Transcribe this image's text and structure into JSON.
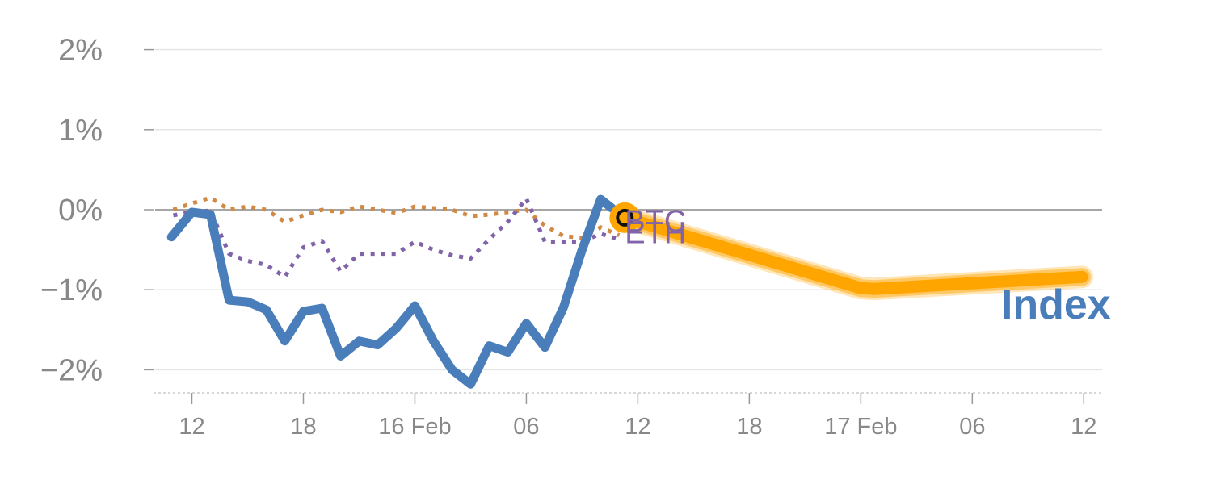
{
  "chart_data": {
    "type": "line",
    "title": "",
    "xlabel": "",
    "ylabel": "",
    "x_unit": "hours",
    "xlim": [
      -1,
      49.5
    ],
    "ylim": [
      -2.25,
      2.0
    ],
    "grid": true,
    "y_ticks": [
      {
        "value": 2,
        "label": "2%"
      },
      {
        "value": 1,
        "label": "1%"
      },
      {
        "value": 0,
        "label": "0%"
      },
      {
        "value": -1,
        "label": "−1%"
      },
      {
        "value": -2,
        "label": "−2%"
      }
    ],
    "x_ticks": [
      {
        "value": 1,
        "label": "12"
      },
      {
        "value": 7,
        "label": "18"
      },
      {
        "value": 13,
        "label": "16 Feb"
      },
      {
        "value": 19,
        "label": "06"
      },
      {
        "value": 25,
        "label": "12"
      },
      {
        "value": 31,
        "label": "18"
      },
      {
        "value": 37,
        "label": "17 Feb"
      },
      {
        "value": 43,
        "label": "06"
      },
      {
        "value": 49,
        "label": "12"
      }
    ],
    "series": [
      {
        "name": "Index",
        "color": "#4a7ebb",
        "style": "solid",
        "x": [
          -0.1,
          1,
          2,
          3,
          4,
          5,
          6,
          7,
          8,
          9,
          10,
          11,
          12,
          13,
          14,
          15,
          16,
          17,
          18,
          19,
          20,
          21,
          22,
          23,
          23.6
        ],
        "y": [
          -0.34,
          -0.03,
          -0.06,
          -1.13,
          -1.15,
          -1.25,
          -1.64,
          -1.27,
          -1.23,
          -1.83,
          -1.64,
          -1.69,
          -1.48,
          -1.2,
          -1.64,
          -2.0,
          -2.18,
          -1.7,
          -1.78,
          -1.42,
          -1.72,
          -1.22,
          -0.5,
          0.13,
          0.02
        ]
      },
      {
        "name": "BTC",
        "color": "#d08a45",
        "style": "dotted",
        "x": [
          0,
          1,
          2,
          3,
          4,
          5,
          6,
          7,
          8,
          9,
          10,
          11,
          12,
          13,
          14,
          15,
          16,
          17,
          18,
          19,
          20,
          21,
          22,
          23,
          24
        ],
        "y": [
          0.0,
          0.08,
          0.15,
          0.0,
          0.04,
          0.0,
          -0.15,
          -0.07,
          0.0,
          -0.03,
          0.04,
          0.0,
          -0.04,
          0.04,
          0.02,
          0.0,
          -0.08,
          -0.06,
          -0.03,
          0.0,
          -0.2,
          -0.33,
          -0.35,
          -0.22,
          -0.32
        ]
      },
      {
        "name": "ETH",
        "color": "#8063a8",
        "style": "dotted",
        "x": [
          0,
          1,
          2,
          3,
          4,
          5,
          6,
          7,
          8,
          9,
          10,
          11,
          12,
          13,
          14,
          15,
          16,
          17,
          18,
          19,
          20,
          21,
          22,
          23,
          24
        ],
        "y": [
          -0.07,
          -0.03,
          -0.01,
          -0.55,
          -0.64,
          -0.69,
          -0.84,
          -0.47,
          -0.39,
          -0.77,
          -0.55,
          -0.55,
          -0.55,
          -0.4,
          -0.5,
          -0.57,
          -0.61,
          -0.37,
          -0.15,
          0.14,
          -0.4,
          -0.4,
          -0.4,
          -0.3,
          -0.37
        ]
      }
    ],
    "forecast": {
      "name": "Index",
      "color": "#ffa500",
      "x": [
        24.3,
        37,
        37.7,
        48.9
      ],
      "y": [
        -0.1,
        -0.98,
        -0.99,
        -0.84
      ]
    },
    "marker": {
      "x": 24.3,
      "y": -0.1,
      "fill": "#ffa500",
      "ring": "#111111"
    },
    "labels": {
      "btc": {
        "text": "BTC",
        "x": 24.3,
        "y": -0.27,
        "color": "#8063a8"
      },
      "eth": {
        "text": "ETH",
        "x": 24.3,
        "y": -0.42,
        "color": "#8063a8"
      },
      "index": {
        "text": "Index",
        "x": 47.5,
        "y": -1.36,
        "color": "#4a7ebb"
      }
    }
  }
}
